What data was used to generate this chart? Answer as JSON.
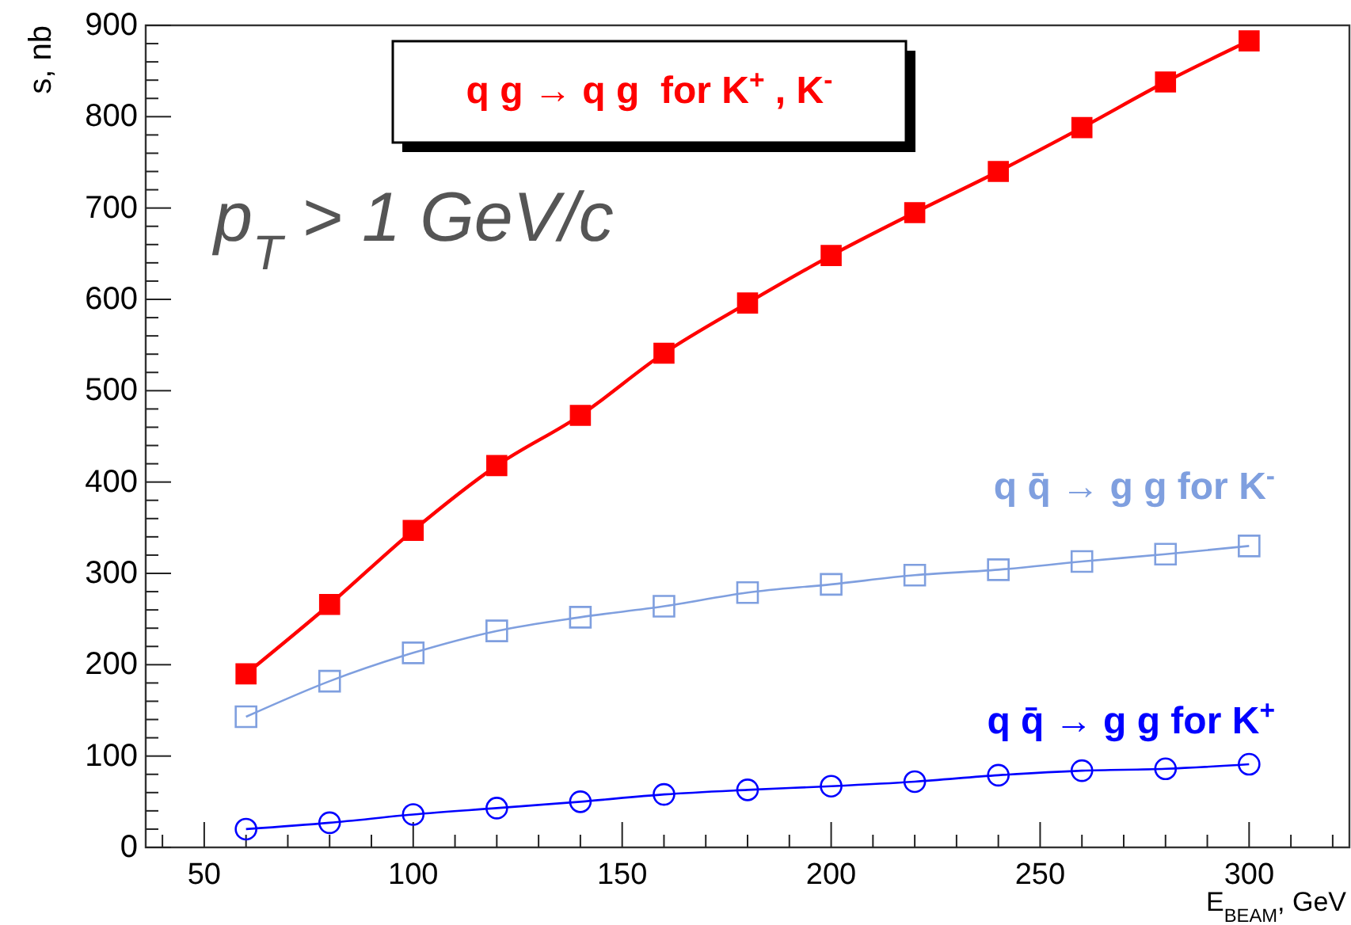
{
  "chart_data": {
    "type": "line",
    "xlabel": "E$_{BEAM}$, GeV",
    "ylabel": "s, nb",
    "x": [
      60,
      80,
      100,
      120,
      140,
      160,
      180,
      200,
      220,
      240,
      260,
      280,
      300
    ],
    "xlim": [
      36,
      324
    ],
    "ylim": [
      0,
      900
    ],
    "xticks": [
      {
        "value": 40,
        "label": null
      },
      50,
      {
        "value": 60,
        "label": null
      },
      {
        "value": 70,
        "label": null
      },
      {
        "value": 80,
        "label": null
      },
      {
        "value": 90,
        "label": null
      },
      100,
      {
        "value": 110,
        "label": null
      },
      {
        "value": 120,
        "label": null
      },
      {
        "value": 130,
        "label": null
      },
      {
        "value": 140,
        "label": null
      },
      150,
      {
        "value": 160,
        "label": null
      },
      {
        "value": 170,
        "label": null
      },
      {
        "value": 180,
        "label": null
      },
      {
        "value": 190,
        "label": null
      },
      200,
      {
        "value": 210,
        "label": null
      },
      {
        "value": 220,
        "label": null
      },
      {
        "value": 230,
        "label": null
      },
      {
        "value": 240,
        "label": null
      },
      250,
      {
        "value": 260,
        "label": null
      },
      {
        "value": 270,
        "label": null
      },
      {
        "value": 280,
        "label": null
      },
      {
        "value": 290,
        "label": null
      },
      300,
      {
        "value": 310,
        "label": null
      },
      {
        "value": 320,
        "label": null
      }
    ],
    "yticks": [
      0,
      {
        "value": 20,
        "label": null
      },
      {
        "value": 40,
        "label": null
      },
      {
        "value": 60,
        "label": null
      },
      {
        "value": 80,
        "label": null
      },
      100,
      {
        "value": 120,
        "label": null
      },
      {
        "value": 140,
        "label": null
      },
      {
        "value": 160,
        "label": null
      },
      {
        "value": 180,
        "label": null
      },
      200,
      {
        "value": 220,
        "label": null
      },
      {
        "value": 240,
        "label": null
      },
      {
        "value": 260,
        "label": null
      },
      {
        "value": 280,
        "label": null
      },
      300,
      {
        "value": 320,
        "label": null
      },
      {
        "value": 340,
        "label": null
      },
      {
        "value": 360,
        "label": null
      },
      {
        "value": 380,
        "label": null
      },
      400,
      {
        "value": 420,
        "label": null
      },
      {
        "value": 440,
        "label": null
      },
      {
        "value": 460,
        "label": null
      },
      {
        "value": 480,
        "label": null
      },
      500,
      {
        "value": 520,
        "label": null
      },
      {
        "value": 540,
        "label": null
      },
      {
        "value": 560,
        "label": null
      },
      {
        "value": 580,
        "label": null
      },
      600,
      {
        "value": 620,
        "label": null
      },
      {
        "value": 640,
        "label": null
      },
      {
        "value": 660,
        "label": null
      },
      {
        "value": 680,
        "label": null
      },
      700,
      {
        "value": 720,
        "label": null
      },
      {
        "value": 740,
        "label": null
      },
      {
        "value": 760,
        "label": null
      },
      {
        "value": 780,
        "label": null
      },
      800,
      {
        "value": 820,
        "label": null
      },
      {
        "value": 840,
        "label": null
      },
      {
        "value": 860,
        "label": null
      },
      {
        "value": 880,
        "label": null
      },
      900
    ],
    "series": [
      {
        "name": "q g → q g  for K$^{+}$ , K$^{-}$",
        "color": "#ff0000",
        "marker": "square",
        "values": [
          190,
          266,
          347,
          418,
          473,
          541,
          596,
          648,
          695,
          740,
          788,
          838,
          883
        ]
      },
      {
        "name": "q q̄ → g g for K$^{-}$",
        "color": "#7f9fdf",
        "marker": "square",
        "values": [
          143,
          182,
          213,
          237,
          252,
          264,
          279,
          288,
          298,
          304,
          313,
          321,
          330
        ]
      },
      {
        "name": "q q̄ → g g for K$^{+}$",
        "color": "#0000ff",
        "marker": "circle",
        "values": [
          20,
          27,
          36,
          43,
          50,
          58,
          63,
          67,
          72,
          79,
          84,
          86,
          91
        ]
      }
    ],
    "annotations": [
      "p$_{T}$ > 1 GeV/c"
    ]
  }
}
